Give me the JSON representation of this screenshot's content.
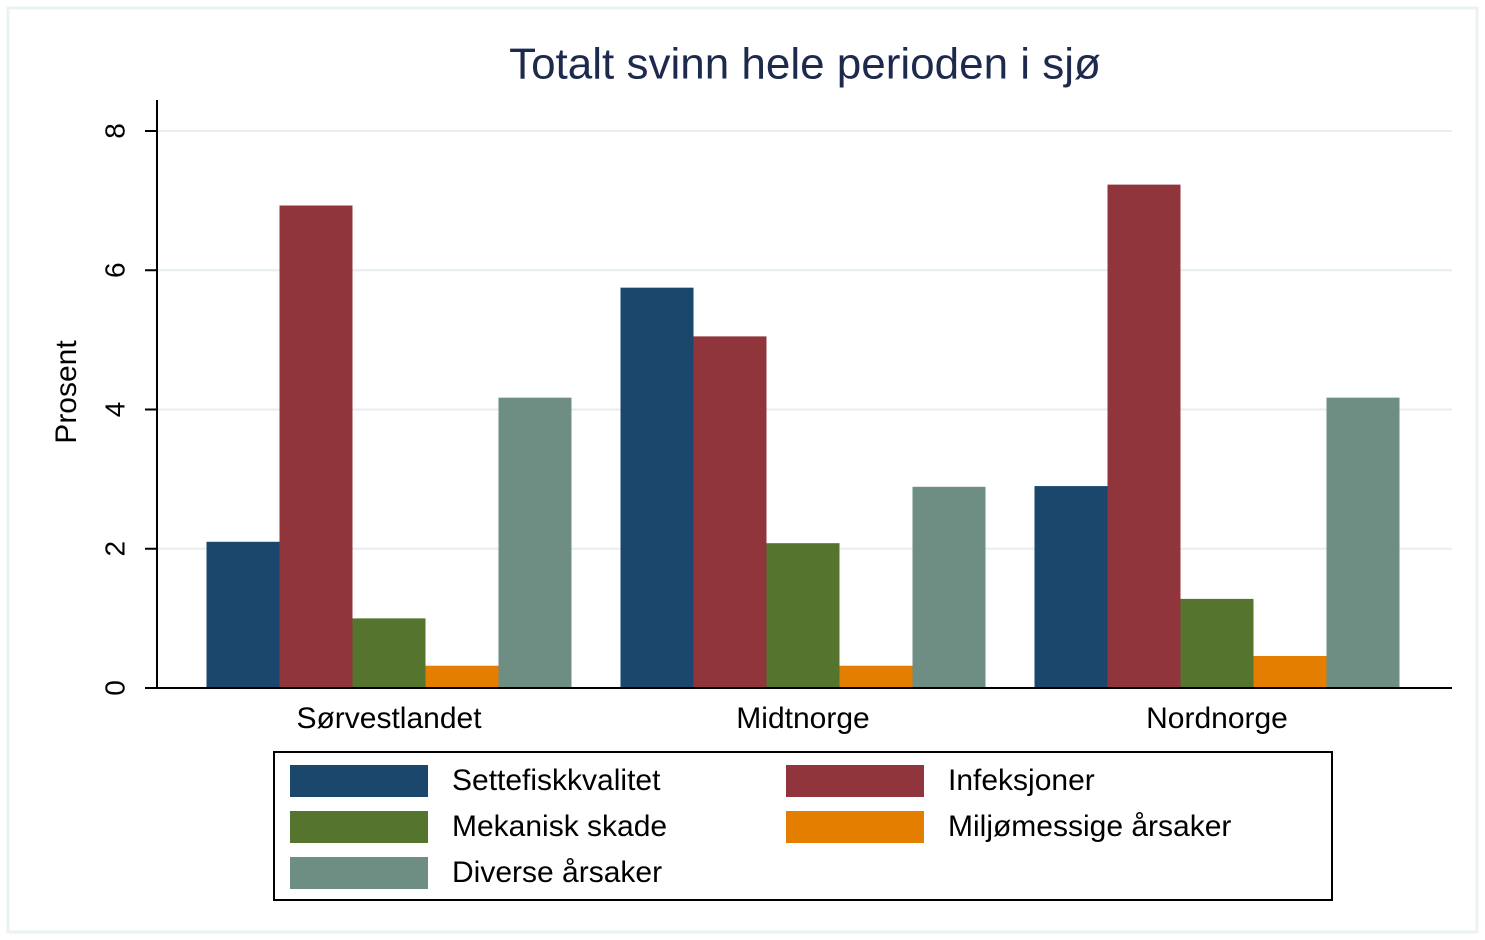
{
  "chart_data": {
    "type": "bar",
    "title": "Totalt svinn hele perioden i sjø",
    "y_label": "Prosent",
    "categories": [
      "Sørvestlandet",
      "Midtnorge",
      "Nordnorge"
    ],
    "series": [
      {
        "name": "Settefiskkvalitet",
        "color": "#1b476d",
        "values": [
          2.1,
          5.75,
          2.9
        ]
      },
      {
        "name": "Infeksjoner",
        "color": "#90353b",
        "values": [
          6.93,
          5.05,
          7.23
        ]
      },
      {
        "name": "Mekanisk skade",
        "color": "#55752f",
        "values": [
          1.0,
          2.08,
          1.28
        ]
      },
      {
        "name": "Miljømessige årsaker",
        "color": "#e37e00",
        "values": [
          0.32,
          0.32,
          0.46
        ]
      },
      {
        "name": "Diverse årsaker",
        "color": "#6e8e84",
        "values": [
          4.17,
          2.89,
          4.17
        ]
      }
    ],
    "ylim": [
      0,
      8
    ],
    "yticks": [
      0,
      2,
      4,
      6,
      8
    ],
    "grid": true,
    "legend": "bottom"
  }
}
